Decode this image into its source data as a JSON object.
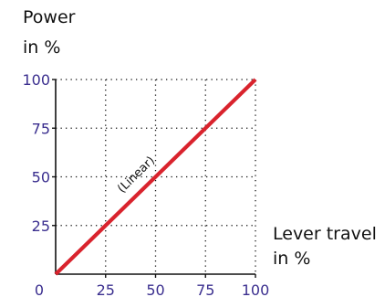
{
  "chart_data": {
    "type": "line",
    "title": "",
    "ylabel_lines": [
      "Power",
      "in %"
    ],
    "xlabel_lines": [
      "Lever travel",
      "in %"
    ],
    "x_ticks": [
      "0",
      "25",
      "50",
      "75",
      "100"
    ],
    "y_ticks": [
      "25",
      "50",
      "75",
      "100"
    ],
    "xlim": [
      0,
      100
    ],
    "ylim": [
      0,
      100
    ],
    "grid": true,
    "grid_style": "dotted",
    "series": [
      {
        "x": [
          0,
          100
        ],
        "y": [
          0,
          100
        ],
        "color": "#d9232d"
      }
    ],
    "annotation": "(Linear)",
    "colors": {
      "tick": "#3b2f8f",
      "axis": "#111111",
      "line": "#d9232d",
      "grid": "#111111"
    }
  }
}
